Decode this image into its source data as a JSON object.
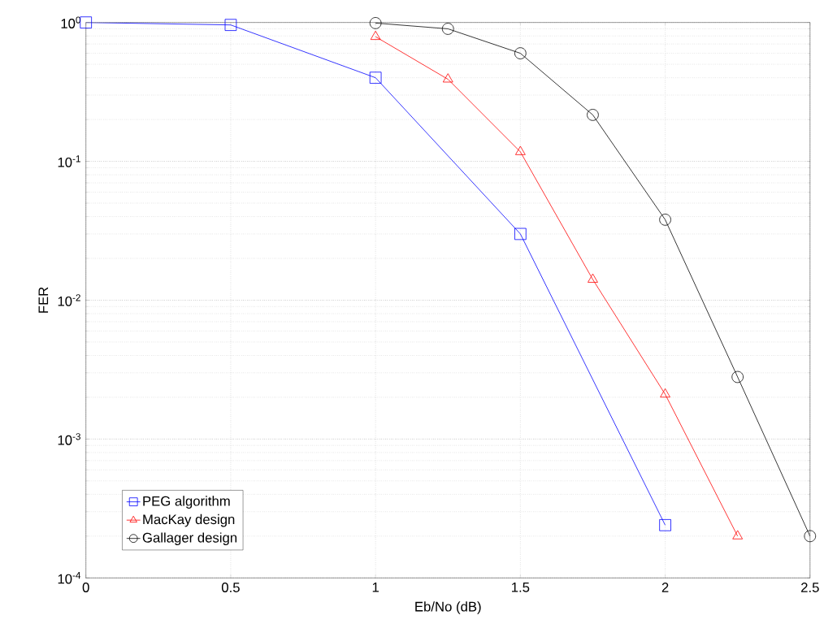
{
  "chart_data": {
    "type": "line",
    "xlabel": "Eb/No (dB)",
    "ylabel": "FER",
    "xlim": [
      0,
      2.5
    ],
    "ylim": [
      0.0001,
      1
    ],
    "log": "y",
    "grid": true,
    "legend": "bottom left",
    "xticks": [
      0,
      0.5,
      1,
      1.5,
      2,
      2.5
    ],
    "yticks": [
      {
        "value": 0.0001,
        "label": "10$^{-4}$"
      },
      {
        "value": 0.001,
        "label": "10$^{-3}$"
      },
      {
        "value": 0.01,
        "label": "10$^{-2}$"
      },
      {
        "value": 0.1,
        "label": "10$^{-1}$"
      },
      {
        "value": 1,
        "label": "10$^{0}$"
      }
    ],
    "series": [
      {
        "name": "PEG algorithm",
        "color": "#0000ff",
        "marker": "square",
        "x": [
          0,
          0.5,
          1,
          1.5,
          2
        ],
        "values": [
          1,
          0.96,
          0.4,
          0.03,
          0.00024
        ]
      },
      {
        "name": "MacKay design",
        "color": "#ff0000",
        "marker": "triangle",
        "x": [
          1,
          1.25,
          1.5,
          1.75,
          2,
          2.25
        ],
        "values": [
          0.79,
          0.39,
          0.117,
          0.0141,
          0.0021,
          0.0002
        ]
      },
      {
        "name": "Gallager design",
        "color": "#000000",
        "marker": "circle",
        "x": [
          1,
          1.25,
          1.5,
          1.75,
          2,
          2.25,
          2.5
        ],
        "values": [
          0.99,
          0.9,
          0.6,
          0.216,
          0.038,
          0.0028,
          0.0002
        ]
      }
    ]
  }
}
